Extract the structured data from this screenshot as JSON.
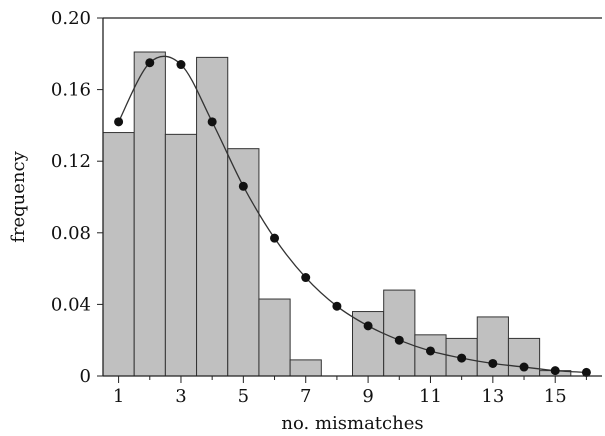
{
  "chart_data": {
    "type": "bar",
    "title": "",
    "xlabel": "no. mismatches",
    "ylabel": "frequency",
    "xlim": [
      0.5,
      16.5
    ],
    "ylim": [
      0,
      0.2
    ],
    "x_ticks": [
      1,
      3,
      5,
      7,
      9,
      11,
      13,
      15
    ],
    "x_tick_labels": [
      "1",
      "3",
      "5",
      "7",
      "9",
      "11",
      "13",
      "15"
    ],
    "y_ticks": [
      0,
      0.04,
      0.08,
      0.12,
      0.16,
      0.2
    ],
    "y_tick_labels": [
      "0",
      "0.04",
      "0.08",
      "0.12",
      "0.16",
      "0.20"
    ],
    "grid": false,
    "series": [
      {
        "kind": "histogram",
        "x": [
          1,
          2,
          3,
          4,
          5,
          6,
          7,
          8,
          9,
          10,
          11,
          12,
          13,
          14,
          15,
          16
        ],
        "values": [
          0.136,
          0.181,
          0.135,
          0.178,
          0.127,
          0.043,
          0.009,
          0.0,
          0.036,
          0.048,
          0.023,
          0.021,
          0.033,
          0.021,
          0.003,
          0.0
        ],
        "color": "#c0c0c0"
      },
      {
        "kind": "line-with-markers",
        "x": [
          1,
          2,
          3,
          4,
          5,
          6,
          7,
          8,
          9,
          10,
          11,
          12,
          13,
          14,
          15,
          16
        ],
        "values": [
          0.142,
          0.175,
          0.174,
          0.142,
          0.106,
          0.077,
          0.055,
          0.039,
          0.028,
          0.02,
          0.014,
          0.01,
          0.007,
          0.005,
          0.003,
          0.002
        ],
        "color": "#111111"
      }
    ]
  }
}
